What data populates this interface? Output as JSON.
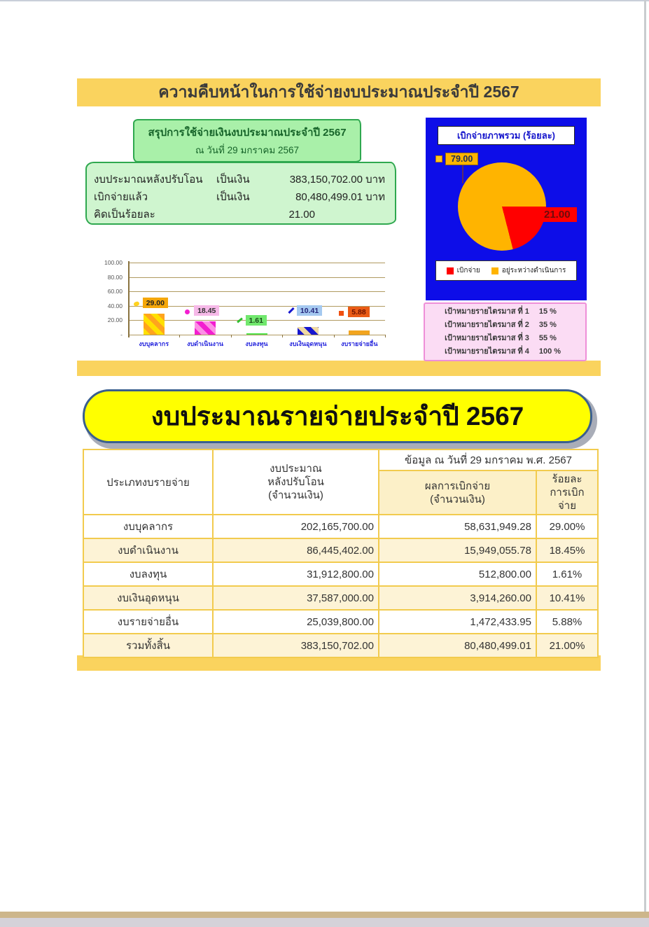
{
  "banner": {
    "title": "ความคืบหน้าในการใช้จ่ายงบประมาณประจำปี  2567"
  },
  "summary_box": {
    "header_line1": "สรุปการใช้จ่ายเงินงบประมาณประจำปี  2567",
    "header_line2": "ณ วันที่ 29 มกราคม 2567",
    "rows": [
      {
        "label": "งบประมาณหลังปรับโอน",
        "unit": "เป็นเงิน",
        "value": "383,150,702.00 บาท"
      },
      {
        "label": "เบิกจ่ายแล้ว",
        "unit": "เป็นเงิน",
        "value": "80,480,499.01 บาท"
      },
      {
        "label": "คิดเป็นร้อยละ",
        "unit": "",
        "value": "21.00"
      }
    ]
  },
  "pie_panel": {
    "title": "เบิกจ่ายภาพรวม (ร้อยละ)",
    "label_remaining": "79.00",
    "label_disbursed": "21.00",
    "legend": [
      {
        "label": "เบิกจ่าย",
        "color": "#ff0000"
      },
      {
        "label": "อยู่ระหว่างดำเนินการ",
        "color": "#ffb400"
      }
    ]
  },
  "bar_chart": {
    "y_ticks": [
      "100.00",
      "80.00",
      "60.00",
      "40.00",
      "20.00",
      "-"
    ],
    "bars": [
      {
        "category": "งบบุคลากร",
        "value": 29.0,
        "label": "29.00"
      },
      {
        "category": "งบดำเนินงาน",
        "value": 18.45,
        "label": "18.45"
      },
      {
        "category": "งบลงทุน",
        "value": 1.61,
        "label": "1.61"
      },
      {
        "category": "งบเงินอุดหนุน",
        "value": 10.41,
        "label": "10.41"
      },
      {
        "category": "งบรายจ่ายอื่น",
        "value": 5.88,
        "label": "5.88"
      }
    ]
  },
  "milestones": [
    {
      "label": "เป้าหมายรายไตรมาส  ที่ 1",
      "value": "15 %"
    },
    {
      "label": "เป้าหมายรายไตรมาส  ที่ 2",
      "value": "35 %"
    },
    {
      "label": "เป้าหมายรายไตรมาส  ที่ 3",
      "value": "55 %"
    },
    {
      "label": "เป้าหมายรายไตรมาส  ที่ 4",
      "value": "100 %"
    }
  ],
  "section_title": "งบประมาณรายจ่ายประจำปี 2567",
  "table": {
    "header": {
      "col_category": "ประเภทงบรายจ่าย",
      "col_budget": "งบประมาณ\nหลังปรับโอน\n(จำนวนเงิน)",
      "data_date": "ข้อมูล ณ วันที่ 29 มกราคม พ.ศ. 2567",
      "col_disbursed": "ผลการเบิกจ่าย\n(จำนวนเงิน)",
      "col_percent": "ร้อยละ\nการเบิกจ่าย"
    },
    "rows": [
      [
        "งบบุคลากร",
        "202,165,700.00",
        "58,631,949.28",
        "29.00%"
      ],
      [
        "งบดำเนินงาน",
        "86,445,402.00",
        "15,949,055.78",
        "18.45%"
      ],
      [
        "งบลงทุน",
        "31,912,800.00",
        "512,800.00",
        "1.61%"
      ],
      [
        "งบเงินอุดหนุน",
        "37,587,000.00",
        "3,914,260.00",
        "10.41%"
      ],
      [
        "งบรายจ่ายอื่น",
        "25,039,800.00",
        "1,472,433.95",
        "5.88%"
      ],
      [
        "รวมทั้งสิ้น",
        "383,150,702.00",
        "80,480,499.01",
        "21.00%"
      ]
    ]
  },
  "colors": {
    "banner_yellow": "#fad35e",
    "pie_background_blue": "#0d0de8",
    "pie_disbursed_red": "#ff0000",
    "pie_remaining_orange": "#ffb400",
    "section_title_yellow": "#ffff00",
    "table_border_gold": "#f2cb4e",
    "table_row_cream": "#fdf3d6",
    "summary_green_fill": "#cff5cf",
    "summary_green_border": "#2fa84f",
    "milestone_pink": "#fbdcf4"
  },
  "chart_data": [
    {
      "type": "pie",
      "title": "เบิกจ่ายภาพรวม (ร้อยละ)",
      "labels": [
        "เบิกจ่าย",
        "อยู่ระหว่างดำเนินการ"
      ],
      "values": [
        21.0,
        79.0
      ],
      "colors": [
        "#ff0000",
        "#ffb400"
      ],
      "legend_position": "bottom",
      "start_angle_deg_clockwise_from_3oclock": 0
    },
    {
      "type": "bar",
      "title": "",
      "categories": [
        "งบบุคลากร",
        "งบดำเนินงาน",
        "งบลงทุน",
        "งบเงินอุดหนุน",
        "งบรายจ่ายอื่น"
      ],
      "values": [
        29.0,
        18.45,
        1.61,
        10.41,
        5.88
      ],
      "xlabel": "",
      "ylabel": "",
      "ylim": [
        0,
        100
      ],
      "y_tick_values": [
        100,
        80,
        60,
        40,
        20,
        0
      ],
      "grid": true,
      "data_labels": [
        "29.00",
        "18.45",
        "1.61",
        "10.41",
        "5.88"
      ]
    }
  ]
}
